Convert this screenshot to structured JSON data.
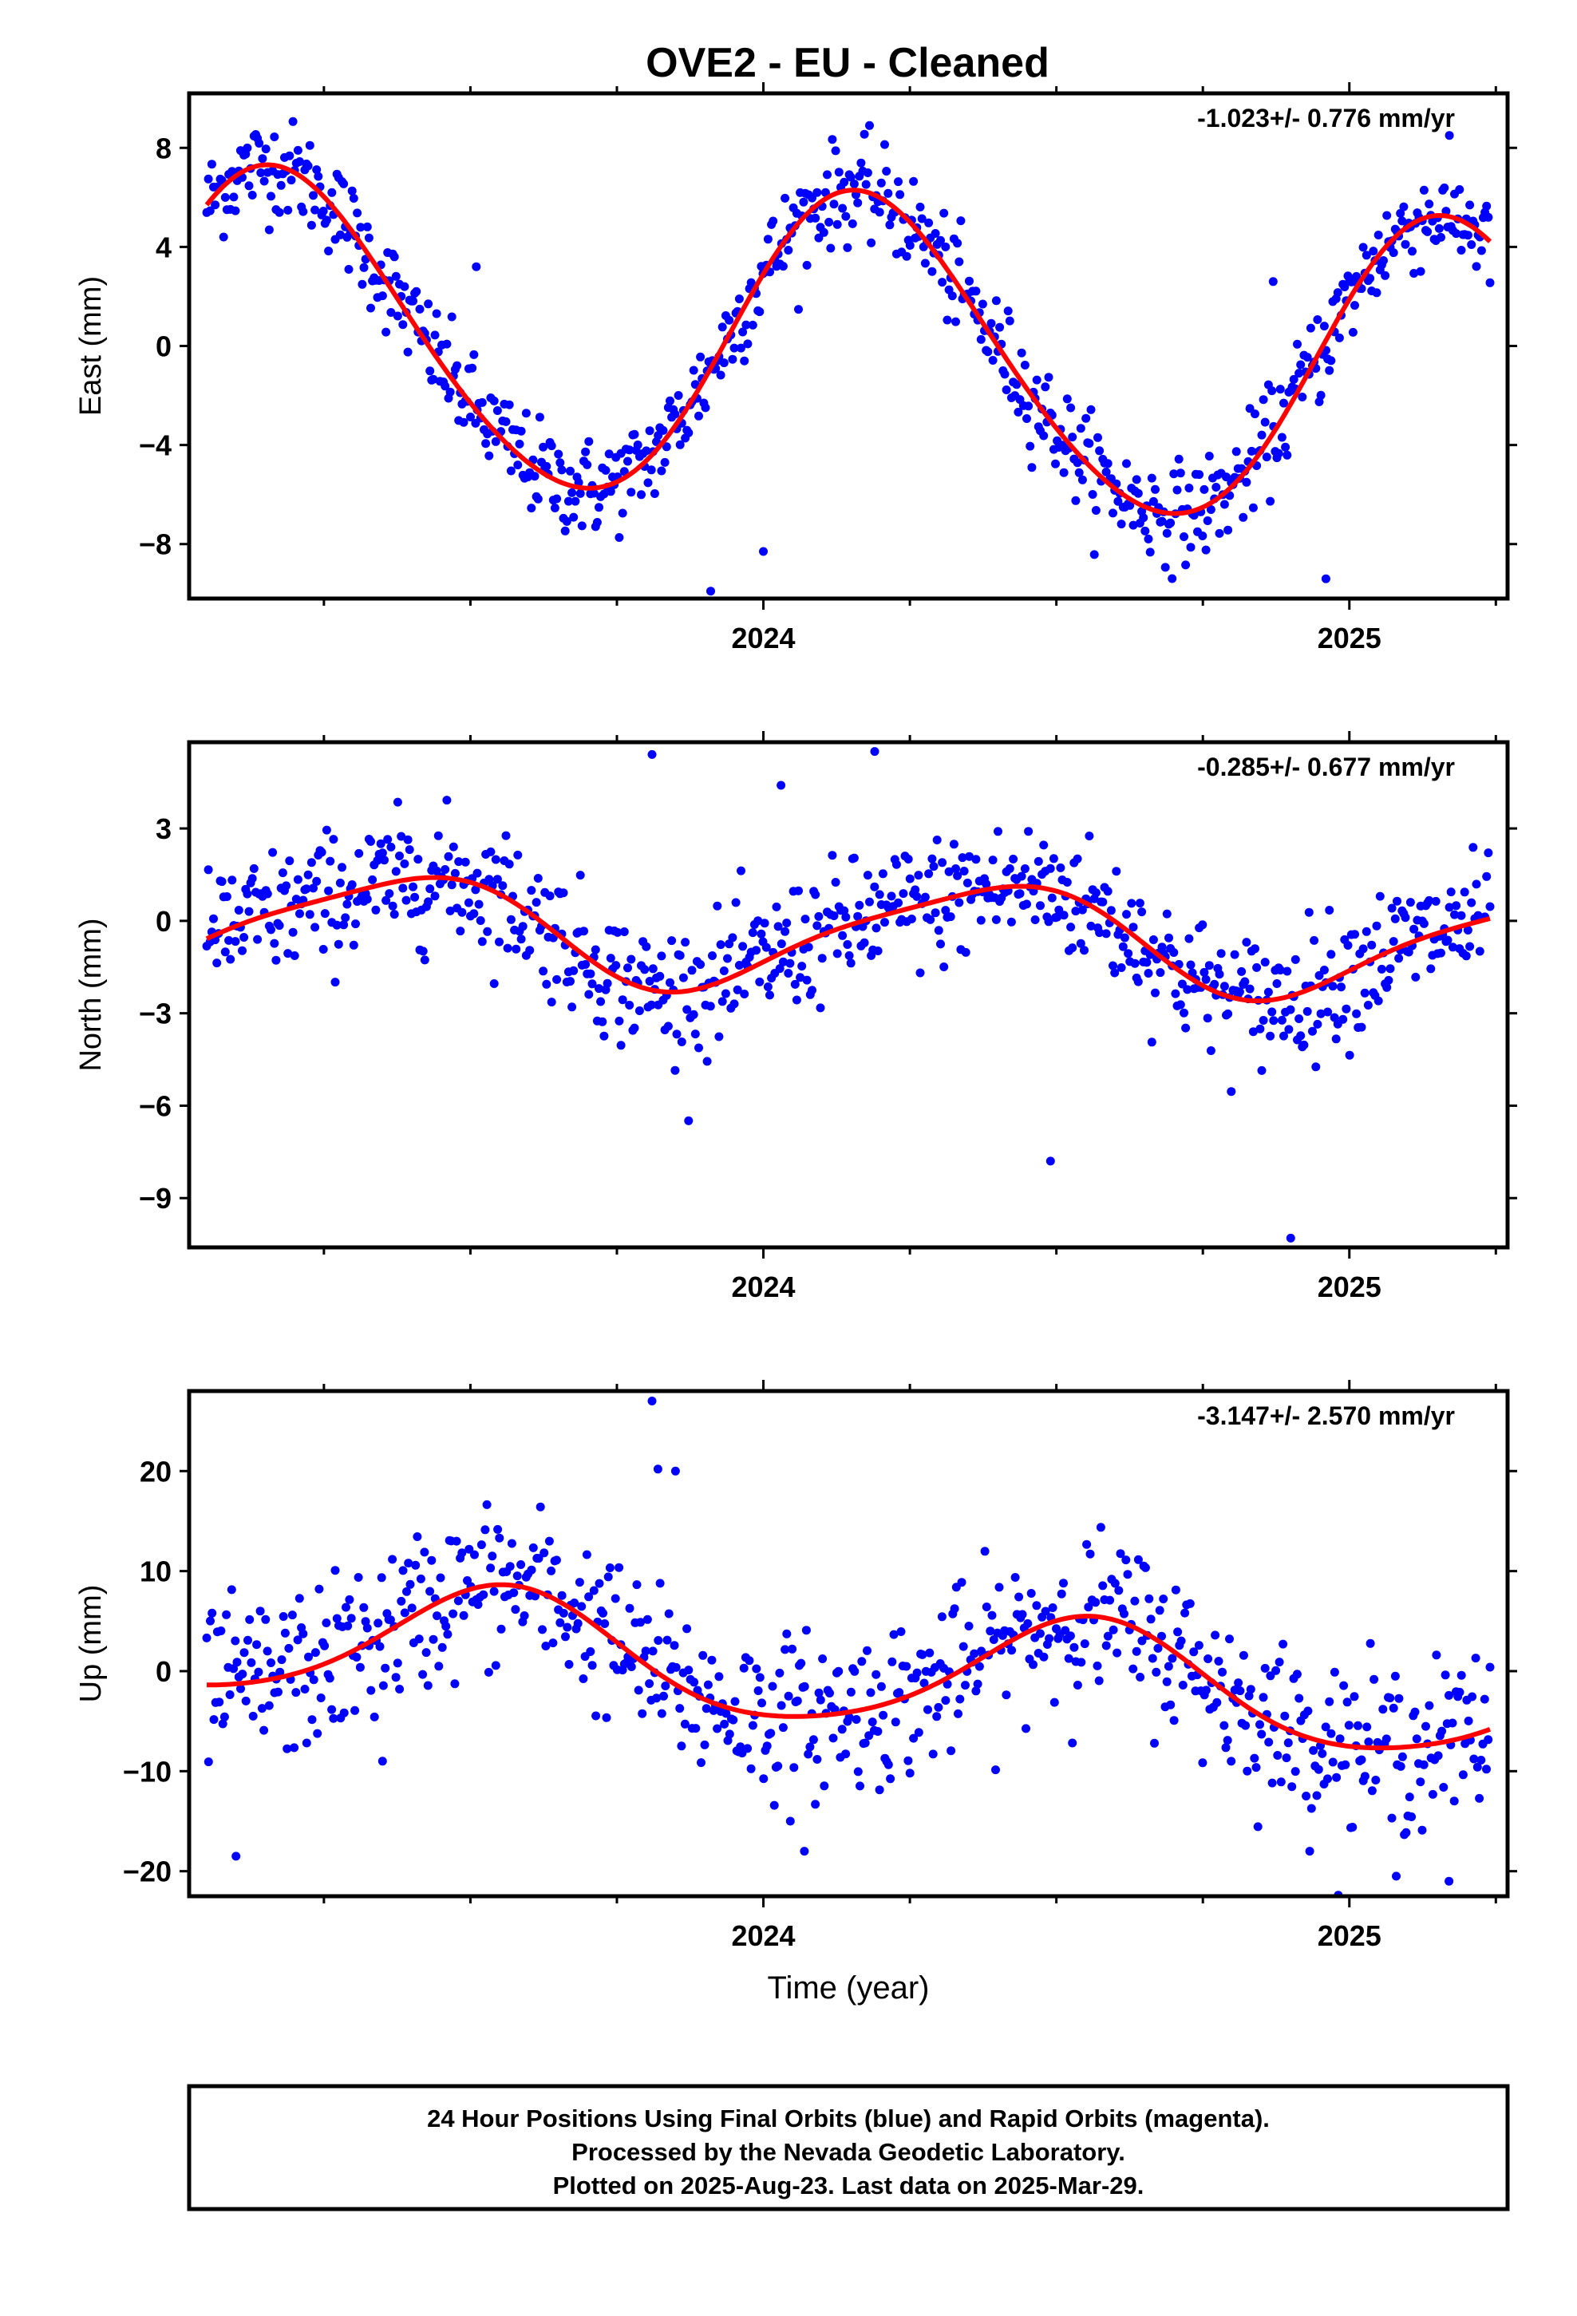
{
  "title": "OVE2  - EU - Cleaned",
  "footer": {
    "lines": [
      "24 Hour Positions Using Final Orbits (blue) and Rapid Orbits (magenta).",
      "Processed by the Nevada Geodetic Laboratory.",
      "Plotted on 2025-Aug-23. Last data on 2025-Mar-29."
    ]
  },
  "colors": {
    "data": "#0000ff",
    "fit": "#ff0000",
    "frame": "#000000"
  },
  "chart_data": [
    {
      "type": "scatter",
      "ylabel": "East (mm)",
      "xlabel": "",
      "rate": "-1.023+/- 0.776 mm/yr",
      "xlim": [
        2023.02,
        2025.27
      ],
      "ylim": [
        -10.2,
        10.2
      ],
      "yticks": [
        -8,
        -4,
        0,
        4,
        8
      ],
      "xticks": [
        2024,
        2025
      ],
      "fit": {
        "offset": -0.25,
        "trend": -1.023,
        "amp_annual": 6.2,
        "phase_annual": 0.48,
        "amp_semi": 0.5,
        "phase_semi": 0.3
      },
      "scatter_sd": 1.0,
      "outliers": [
        [
          2023.51,
          3.2
        ],
        [
          2023.91,
          -9.9
        ],
        [
          2024.96,
          -9.4
        ],
        [
          2024.87,
          2.6
        ],
        [
          2024.0,
          -8.3
        ]
      ],
      "series": [
        {
          "name": "Final Orbits",
          "x_range": [
            2023.05,
            2025.24
          ],
          "count": 760
        },
        {
          "name": "Fit",
          "x_range": [
            2023.05,
            2025.24
          ]
        }
      ]
    },
    {
      "type": "scatter",
      "ylabel": "North (mm)",
      "xlabel": "",
      "rate": "-0.285+/- 0.677 mm/yr",
      "xlim": [
        2023.02,
        2025.27
      ],
      "ylim": [
        -10.6,
        5.8
      ],
      "yticks": [
        -9,
        -6,
        -3,
        0,
        3
      ],
      "xticks": [
        2024,
        2025
      ],
      "fit": {
        "offset": -0.45,
        "trend": -0.285,
        "amp_annual": 1.7,
        "phase_annual": -0.8,
        "amp_semi": 0.35,
        "phase_semi": 1.0
      },
      "scatter_sd": 1.05,
      "outliers": [
        [
          2024.49,
          -7.8
        ],
        [
          2024.9,
          -10.3
        ],
        [
          2024.19,
          5.5
        ],
        [
          2023.81,
          5.4
        ],
        [
          2024.03,
          4.4
        ]
      ],
      "series": [
        {
          "name": "Final Orbits",
          "x_range": [
            2023.05,
            2025.24
          ],
          "count": 760
        },
        {
          "name": "Fit",
          "x_range": [
            2023.05,
            2025.24
          ]
        }
      ]
    },
    {
      "type": "scatter",
      "ylabel": "Up (mm)",
      "xlabel": "Time (year)",
      "rate": "-3.147+/- 2.570 mm/yr",
      "xlim": [
        2023.02,
        2025.27
      ],
      "ylim": [
        -22.5,
        28.0
      ],
      "yticks": [
        -20,
        -10,
        0,
        10,
        20
      ],
      "xticks": [
        2024,
        2025
      ],
      "fit": {
        "offset": 0.2,
        "trend": -3.147,
        "amp_annual": 5.8,
        "phase_annual": -1.9,
        "amp_semi": 0.8,
        "phase_semi": 0.6
      },
      "scatter_sd": 4.0,
      "outliers": [
        [
          2023.81,
          27.0
        ],
        [
          2023.82,
          20.2
        ],
        [
          2023.85,
          20.0
        ],
        [
          2024.07,
          -18.0
        ],
        [
          2025.17,
          -21.0
        ],
        [
          2025.08,
          -20.5
        ],
        [
          2023.1,
          -18.5
        ],
        [
          2023.35,
          -9.0
        ]
      ],
      "series": [
        {
          "name": "Final Orbits",
          "x_range": [
            2023.05,
            2025.24
          ],
          "count": 720
        },
        {
          "name": "Fit",
          "x_range": [
            2023.05,
            2025.24
          ]
        }
      ]
    }
  ]
}
